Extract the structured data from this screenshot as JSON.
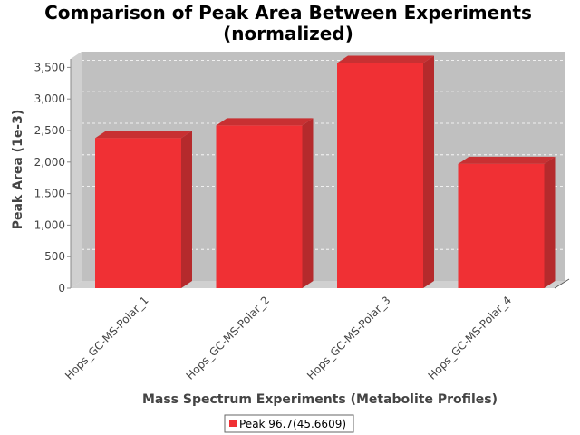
{
  "chart_data": {
    "type": "bar",
    "title": "Comparison of Peak Area Between Experiments",
    "subtitle": "(normalized)",
    "xlabel": "Mass Spectrum Experiments (Metabolite Profiles)",
    "ylabel": "Peak Area (1e-3)",
    "categories": [
      "Hops_GC-MS-Polar_1",
      "Hops_GC-MS-Polar_2",
      "Hops_GC-MS-Polar_3",
      "Hops_GC-MS-Polar_4"
    ],
    "series": [
      {
        "name": "Peak 96.7(45.6609)",
        "values": [
          2380,
          2580,
          3570,
          1970
        ],
        "color": "#f03034"
      }
    ],
    "ylim": [
      0,
      3750
    ],
    "yticks": [
      0,
      500,
      1000,
      1500,
      2000,
      2500,
      3000,
      3500
    ],
    "ytick_labels": [
      "0",
      "500",
      "1,000",
      "1,500",
      "2,000",
      "2,500",
      "3,000",
      "3,500"
    ],
    "grid": true,
    "legend_position": "bottom-center",
    "colors": {
      "plot_back": "#c0c0c0",
      "plot_side": "#d0d0d0",
      "bar": "#f03034",
      "bar_top": "#c83032",
      "bar_side": "#b52a2c"
    }
  }
}
